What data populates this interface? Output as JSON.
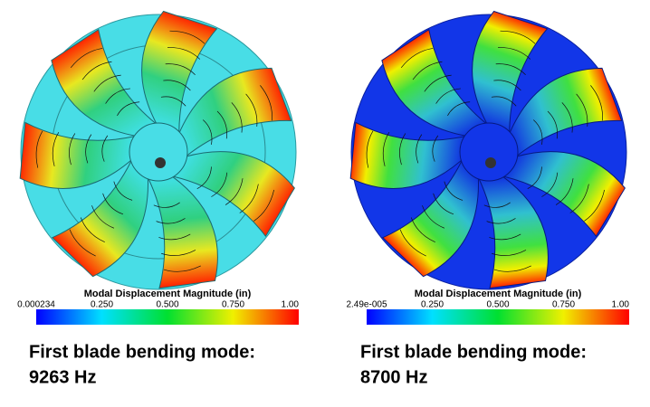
{
  "panels": [
    {
      "colorbar": {
        "title": "Modal Displacement Magnitude (in)",
        "ticks": [
          "0.000234",
          "0.250",
          "0.500",
          "0.750",
          "1.00"
        ]
      },
      "caption": [
        "First blade bending mode:",
        "9263 Hz"
      ]
    },
    {
      "colorbar": {
        "title": "Modal Displacement Magnitude (in)",
        "ticks": [
          "2.49e-005",
          "0.250",
          "0.500",
          "0.750",
          "1.00"
        ]
      },
      "caption": [
        "First blade bending mode:",
        "8700 Hz"
      ]
    }
  ]
}
